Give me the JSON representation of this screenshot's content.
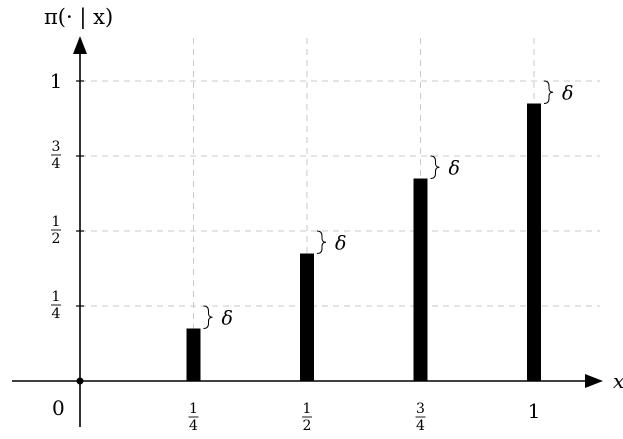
{
  "chart_data": {
    "type": "bar",
    "title": "",
    "xlabel": "x",
    "ylabel": "π(· | x)",
    "origin_label": "0",
    "x_ticks": [
      {
        "value": 0.25,
        "num": "1",
        "den": "4"
      },
      {
        "value": 0.5,
        "num": "1",
        "den": "2"
      },
      {
        "value": 0.75,
        "num": "3",
        "den": "4"
      },
      {
        "value": 1.0,
        "label": "1"
      }
    ],
    "y_ticks": [
      {
        "value": 0.25,
        "num": "1",
        "den": "4"
      },
      {
        "value": 0.5,
        "num": "1",
        "den": "2"
      },
      {
        "value": 0.75,
        "num": "3",
        "den": "4"
      },
      {
        "value": 1.0,
        "label": "1"
      }
    ],
    "x": [
      0.25,
      0.5,
      0.75,
      1.0
    ],
    "values": [
      0.175,
      0.425,
      0.675,
      0.925
    ],
    "gap_label": "δ",
    "xlim": [
      0,
      1
    ],
    "ylim": [
      0,
      1
    ],
    "grid": true,
    "grid_style": "dashed"
  }
}
